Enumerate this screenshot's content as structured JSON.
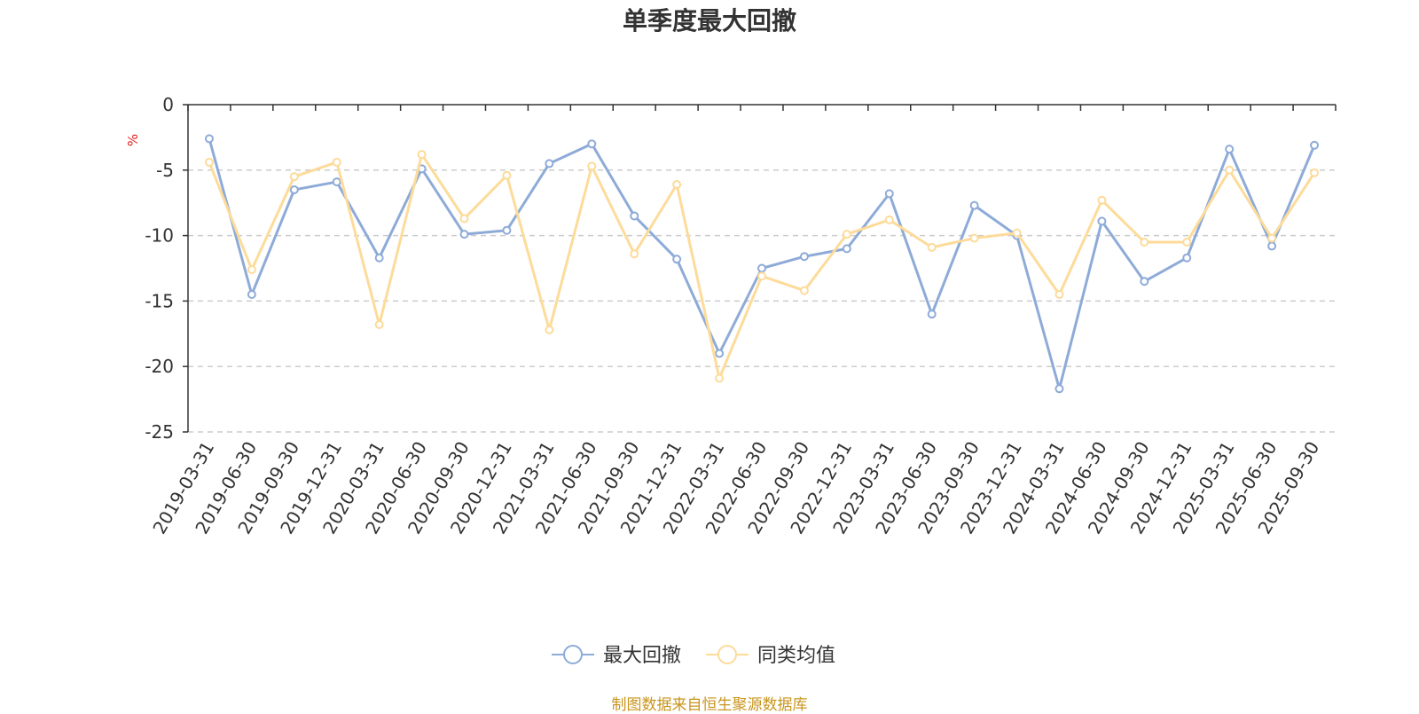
{
  "chart_data": {
    "type": "line",
    "title": "单季度最大回撤",
    "ylabel": "%",
    "ylim": [
      -25,
      0
    ],
    "yticks": [
      0,
      -5,
      -10,
      -15,
      -20,
      -25
    ],
    "grid": true,
    "legend_position": "bottom",
    "categories": [
      "2019-03-31",
      "2019-06-30",
      "2019-09-30",
      "2019-12-31",
      "2020-03-31",
      "2020-06-30",
      "2020-09-30",
      "2020-12-31",
      "2021-03-31",
      "2021-06-30",
      "2021-09-30",
      "2021-12-31",
      "2022-03-31",
      "2022-06-30",
      "2022-09-30",
      "2022-12-31",
      "2023-03-31",
      "2023-06-30",
      "2023-09-30",
      "2023-12-31",
      "2024-03-31",
      "2024-06-30",
      "2024-09-30",
      "2024-12-31",
      "2025-03-31",
      "2025-06-30",
      "2025-09-30"
    ],
    "series": [
      {
        "name": "最大回撤",
        "color": "#8eabd8",
        "values": [
          -2.6,
          -14.5,
          -6.5,
          -5.9,
          -11.7,
          -4.9,
          -9.9,
          -9.6,
          -4.5,
          -3.0,
          -8.5,
          -11.8,
          -19.0,
          -12.5,
          -11.6,
          -11.0,
          -6.8,
          -16.0,
          -7.7,
          -10.0,
          -21.7,
          -8.9,
          -13.5,
          -11.7,
          -3.4,
          -10.8,
          -3.1
        ]
      },
      {
        "name": "同类均值",
        "color": "#fddb9a",
        "values": [
          -4.4,
          -12.6,
          -5.5,
          -4.4,
          -16.8,
          -3.8,
          -8.7,
          -5.4,
          -17.2,
          -4.7,
          -11.4,
          -6.1,
          -20.9,
          -13.1,
          -14.2,
          -9.9,
          -8.8,
          -10.9,
          -10.2,
          -9.8,
          -14.5,
          -7.3,
          -10.5,
          -10.5,
          -5.0,
          -10.2,
          -5.2
        ]
      }
    ]
  },
  "footer": {
    "source": "制图数据来自恒生聚源数据库"
  },
  "colors": {
    "axis": "#333333",
    "grid": "#cccccc",
    "source": "#c8951d",
    "unit": "#e02020"
  }
}
